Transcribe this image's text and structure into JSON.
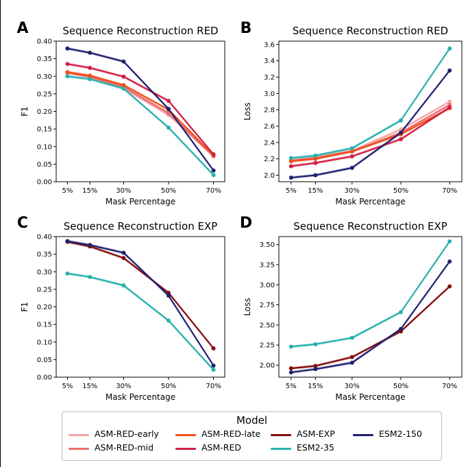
{
  "colors": {
    "ASM-RED-early": "#f4a6a6",
    "ASM-RED-mid": "#ec6b6b",
    "ASM-RED-late": "#ef4f1a",
    "ASM-RED": "#d21f45",
    "ASM-EXP": "#850d0d",
    "ESM2-35": "#27b1ad",
    "ESM2-150": "#202070"
  },
  "legend": {
    "title": "Model",
    "items": [
      {
        "name": "ASM-RED-early"
      },
      {
        "name": "ASM-RED-mid"
      },
      {
        "name": "ASM-RED-late"
      },
      {
        "name": "ASM-RED"
      },
      {
        "name": "ASM-EXP"
      },
      {
        "name": "ESM2-35"
      },
      {
        "name": "ESM2-150"
      }
    ]
  },
  "chart_data": [
    {
      "panel": "A",
      "type": "line",
      "title": "Sequence Reconstruction RED",
      "xlabel": "Mask Percentage",
      "ylabel": "F1",
      "x": [
        5,
        15,
        30,
        50,
        70
      ],
      "xtick_labels": [
        "5%",
        "15%",
        "30%",
        "50%",
        "70%"
      ],
      "ylim": [
        0,
        0.4
      ],
      "yticks": [
        "0.00",
        "0.05",
        "0.10",
        "0.15",
        "0.20",
        "0.25",
        "0.30",
        "0.35",
        "0.40"
      ],
      "series": [
        {
          "name": "ASM-RED-early",
          "values": [
            0.31,
            0.3,
            0.265,
            0.19,
            0.072
          ]
        },
        {
          "name": "ASM-RED-mid",
          "values": [
            0.31,
            0.298,
            0.27,
            0.195,
            0.073
          ]
        },
        {
          "name": "ASM-RED-late",
          "values": [
            0.312,
            0.302,
            0.275,
            0.205,
            0.075
          ]
        },
        {
          "name": "ASM-RED",
          "values": [
            0.335,
            0.324,
            0.299,
            0.23,
            0.078
          ]
        },
        {
          "name": "ESM2-35",
          "values": [
            0.3,
            0.292,
            0.265,
            0.154,
            0.019
          ]
        },
        {
          "name": "ESM2-150",
          "values": [
            0.379,
            0.367,
            0.342,
            0.207,
            0.032
          ]
        }
      ]
    },
    {
      "panel": "B",
      "type": "line",
      "title": "Sequence Reconstruction RED",
      "xlabel": "Mask Percentage",
      "ylabel": "Loss",
      "x": [
        5,
        15,
        30,
        50,
        70
      ],
      "xtick_labels": [
        "5%",
        "15%",
        "30%",
        "50%",
        "70%"
      ],
      "ylim": [
        1.92,
        3.64
      ],
      "yticks": [
        "2.0",
        "2.2",
        "2.4",
        "2.6",
        "2.8",
        "3.0",
        "3.2",
        "3.4",
        "3.6"
      ],
      "series": [
        {
          "name": "ASM-RED-early",
          "values": [
            2.18,
            2.22,
            2.3,
            2.56,
            2.9
          ]
        },
        {
          "name": "ASM-RED-mid",
          "values": [
            2.18,
            2.21,
            2.29,
            2.52,
            2.86
          ]
        },
        {
          "name": "ASM-RED-late",
          "values": [
            2.17,
            2.2,
            2.29,
            2.5,
            2.82
          ]
        },
        {
          "name": "ASM-RED",
          "values": [
            2.11,
            2.15,
            2.23,
            2.44,
            2.83
          ]
        },
        {
          "name": "ESM2-35",
          "values": [
            2.21,
            2.24,
            2.33,
            2.67,
            3.55
          ]
        },
        {
          "name": "ESM2-150",
          "values": [
            1.97,
            2.0,
            2.09,
            2.52,
            3.28
          ]
        }
      ]
    },
    {
      "panel": "C",
      "type": "line",
      "title": "Sequence Reconstruction EXP",
      "xlabel": "Mask Percentage",
      "ylabel": "F1",
      "x": [
        5,
        15,
        30,
        50,
        70
      ],
      "xtick_labels": [
        "5%",
        "15%",
        "30%",
        "50%",
        "70%"
      ],
      "ylim": [
        0,
        0.4
      ],
      "yticks": [
        "0.00",
        "0.05",
        "0.10",
        "0.15",
        "0.20",
        "0.25",
        "0.30",
        "0.35",
        "0.40"
      ],
      "series": [
        {
          "name": "ASM-EXP",
          "values": [
            0.385,
            0.372,
            0.339,
            0.24,
            0.082
          ]
        },
        {
          "name": "ESM2-35",
          "values": [
            0.295,
            0.285,
            0.261,
            0.161,
            0.021
          ]
        },
        {
          "name": "ESM2-150",
          "values": [
            0.387,
            0.376,
            0.354,
            0.232,
            0.033
          ]
        }
      ]
    },
    {
      "panel": "D",
      "type": "line",
      "title": "Sequence Reconstruction EXP",
      "xlabel": "Mask Percentage",
      "ylabel": "Loss",
      "x": [
        5,
        15,
        30,
        50,
        70
      ],
      "xtick_labels": [
        "5%",
        "15%",
        "30%",
        "50%",
        "70%"
      ],
      "ylim": [
        1.85,
        3.6
      ],
      "yticks": [
        "2.00",
        "2.25",
        "2.50",
        "2.75",
        "3.00",
        "3.25",
        "3.50"
      ],
      "series": [
        {
          "name": "ASM-EXP",
          "values": [
            1.96,
            1.99,
            2.1,
            2.42,
            2.98
          ]
        },
        {
          "name": "ESM2-35",
          "values": [
            2.23,
            2.26,
            2.34,
            2.66,
            3.54
          ]
        },
        {
          "name": "ESM2-150",
          "values": [
            1.91,
            1.95,
            2.03,
            2.45,
            3.29
          ]
        }
      ]
    }
  ]
}
